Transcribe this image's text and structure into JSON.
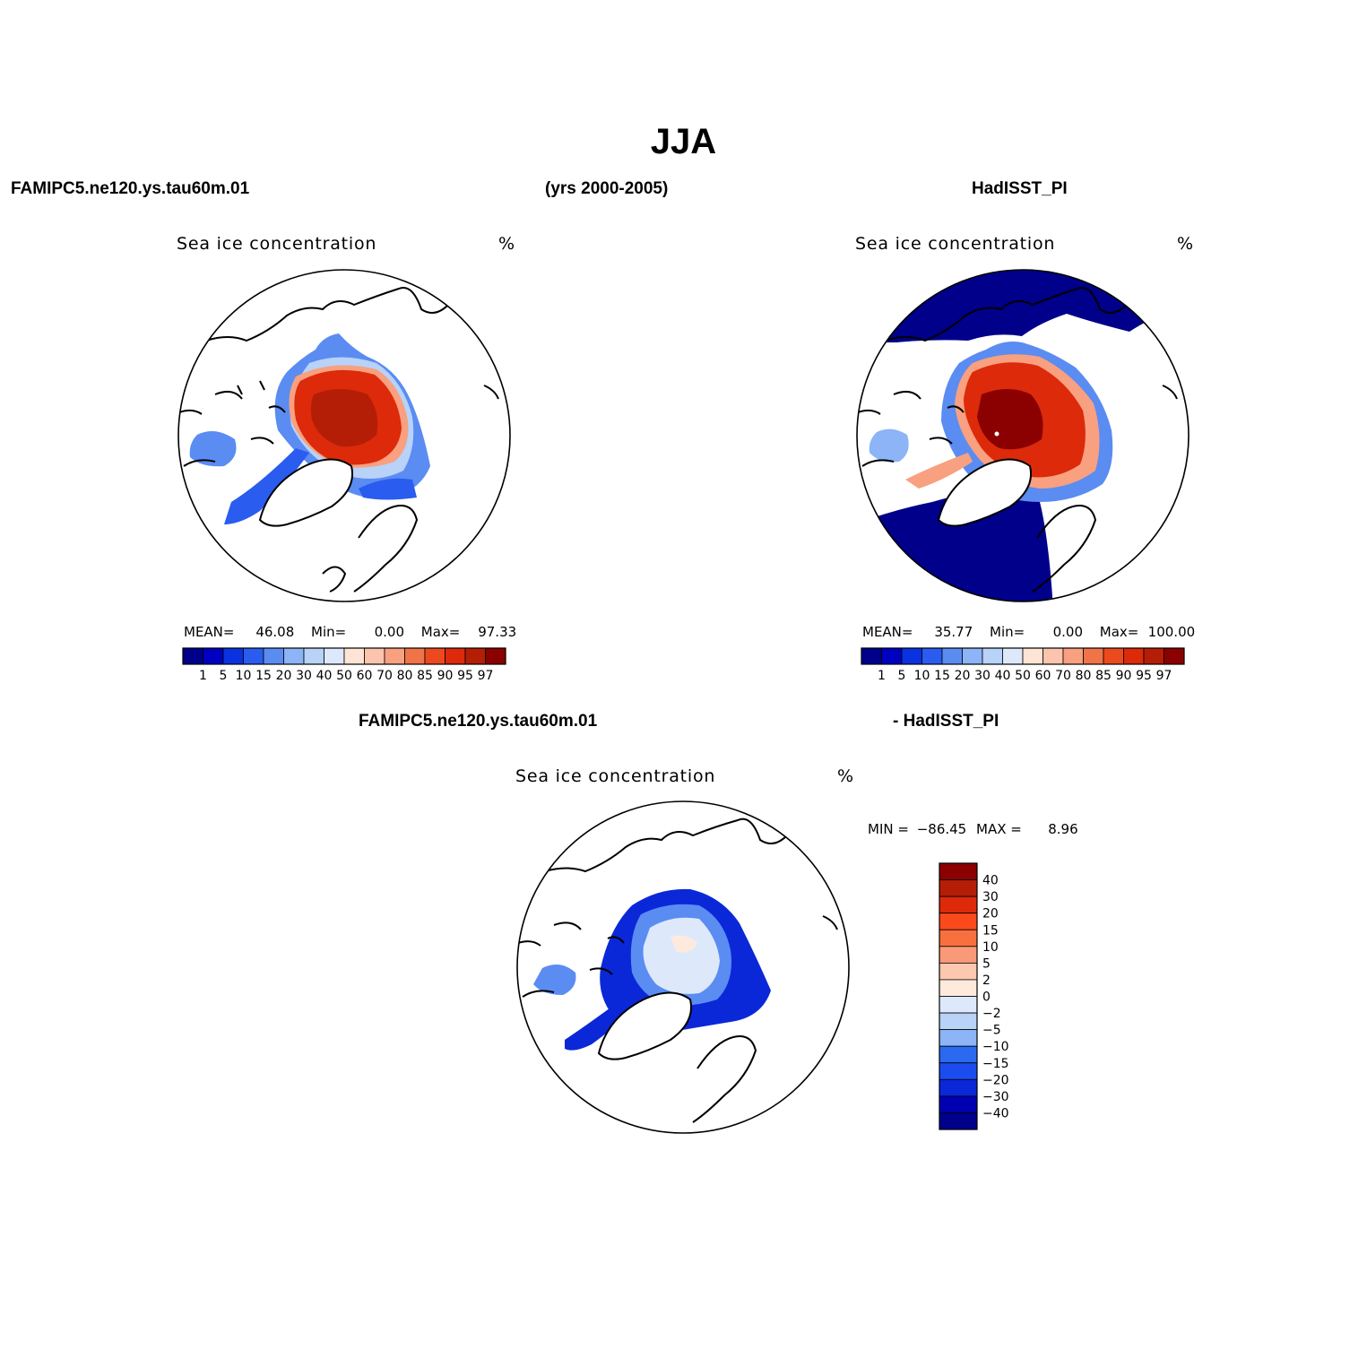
{
  "figure": {
    "title": "JJA",
    "left_header": "FAMIPC5.ne120.ys.tau60m.01",
    "years": "(yrs 2000-2005)",
    "right_header": "HadISST_PI",
    "diff_left_header": "FAMIPC5.ne120.ys.tau60m.01",
    "diff_right_header": "- HadISST_PI"
  },
  "panels": {
    "model": {
      "title": "Sea ice concentration",
      "units": "%",
      "stats": {
        "mean_label": "MEAN=",
        "mean": "46.08",
        "min_label": "Min=",
        "min": "0.00",
        "max_label": "Max=",
        "max": "97.33"
      }
    },
    "obs": {
      "title": "Sea ice concentration",
      "units": "%",
      "stats": {
        "mean_label": "MEAN=",
        "mean": "35.77",
        "min_label": "Min=",
        "min": "0.00",
        "max_label": "Max=",
        "max": "100.00"
      }
    },
    "diff": {
      "title": "Sea ice concentration",
      "units": "%",
      "stats": {
        "min_label": "MIN =",
        "min": "−86.45",
        "max_label": "MAX =",
        "max": "8.96"
      }
    }
  },
  "chart_data": [
    {
      "type": "heatmap",
      "projection": "north-polar-stereographic",
      "title": "Sea ice concentration",
      "units": "%",
      "mean": 46.08,
      "min": 0.0,
      "max": 97.33,
      "colorbar_levels": [
        "1",
        "5",
        "10",
        "15",
        "20",
        "30",
        "40",
        "50",
        "60",
        "70",
        "80",
        "85",
        "90",
        "95",
        "97"
      ]
    },
    {
      "type": "heatmap",
      "projection": "north-polar-stereographic",
      "title": "Sea ice concentration",
      "units": "%",
      "mean": 35.77,
      "min": 0.0,
      "max": 100.0,
      "colorbar_levels": [
        "1",
        "5",
        "10",
        "15",
        "20",
        "30",
        "40",
        "50",
        "60",
        "70",
        "80",
        "85",
        "90",
        "95",
        "97"
      ]
    },
    {
      "type": "heatmap",
      "projection": "north-polar-stereographic",
      "title": "Sea ice concentration",
      "units": "%",
      "min": -86.45,
      "max": 8.96,
      "colorbar_levels": [
        "40",
        "30",
        "20",
        "15",
        "10",
        "5",
        "2",
        "0",
        "−2",
        "−5",
        "−10",
        "−15",
        "−20",
        "−30",
        "−40"
      ]
    }
  ],
  "colors": {
    "seq": [
      "#00008b",
      "#0000c0",
      "#0a32e0",
      "#2a5cf0",
      "#5a8cf2",
      "#8cb4f6",
      "#b8d2f8",
      "#dde9fb",
      "#fee4d4",
      "#fcc4ad",
      "#f8a07f",
      "#f07447",
      "#ec4a1e",
      "#dc2a0a",
      "#b41e06",
      "#8b0000"
    ],
    "div": [
      "#8b0000",
      "#b41e06",
      "#dc2a0a",
      "#fa4a1c",
      "#f8703e",
      "#f89a78",
      "#fcc8b0",
      "#feeadc",
      "#dde9fb",
      "#b8d2f8",
      "#8cb4f6",
      "#2a6af0",
      "#1a4cf0",
      "#0a28d8",
      "#0000b0",
      "#00008b"
    ],
    "coast": "#000000"
  }
}
